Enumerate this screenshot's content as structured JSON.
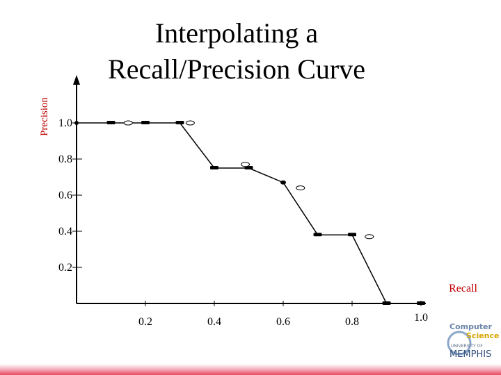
{
  "chart_data": {
    "type": "line",
    "title_lines": [
      "Interpolating a",
      "Recall/Precision Curve"
    ],
    "xlabel": "Recall",
    "ylabel": "Precision",
    "xlim": [
      0,
      1.0
    ],
    "ylim": [
      0,
      1.0
    ],
    "x_ticks": [
      {
        "value": 0.2,
        "label": "0.2"
      },
      {
        "value": 0.4,
        "label": "0.4"
      },
      {
        "value": 0.6,
        "label": "0.6"
      },
      {
        "value": 0.8,
        "label": "0.8"
      },
      {
        "value": 1.0,
        "label": "1.0"
      }
    ],
    "y_ticks": [
      {
        "value": 0.2,
        "label": "0.2"
      },
      {
        "value": 0.4,
        "label": "0.4"
      },
      {
        "value": 0.6,
        "label": "0.6"
      },
      {
        "value": 0.8,
        "label": "0.8"
      },
      {
        "value": 1.0,
        "label": "1.0"
      }
    ],
    "interpolated": [
      [
        0.0,
        1.0
      ],
      [
        0.1,
        1.0
      ],
      [
        0.2,
        1.0
      ],
      [
        0.3,
        1.0
      ],
      [
        0.4,
        0.75
      ],
      [
        0.5,
        0.75
      ],
      [
        0.6,
        0.67
      ],
      [
        0.7,
        0.38
      ],
      [
        0.8,
        0.38
      ],
      [
        0.9,
        0.0
      ],
      [
        1.0,
        0.0
      ]
    ],
    "original": [
      [
        0.15,
        1.0
      ],
      [
        0.33,
        1.0
      ],
      [
        0.49,
        0.77
      ],
      [
        0.65,
        0.64
      ],
      [
        0.85,
        0.37
      ]
    ]
  },
  "logo": {
    "line1": "Computer",
    "line2": "Science",
    "line3": "UNIVERSITY OF",
    "line4": "MEMPHIS"
  },
  "colors": {
    "axis": "#000000",
    "label_accent": "#c00000",
    "footer_gradient": "#e8485f"
  }
}
